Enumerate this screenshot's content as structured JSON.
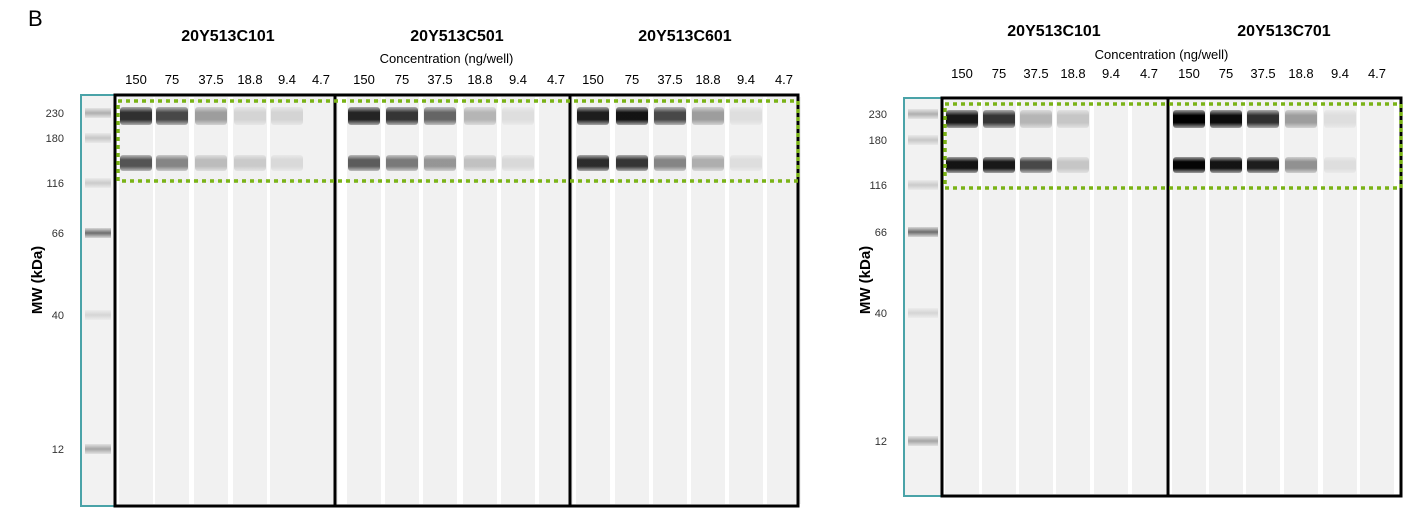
{
  "panel_label": "B",
  "concentration_label": "Concentration (ng/well)",
  "mw_axis_label": "MW (kDa)",
  "ladder_markers": [
    "230",
    "180",
    "116",
    "66",
    "40",
    "12"
  ],
  "lane_concentrations": [
    "150",
    "75",
    "37.5",
    "18.8",
    "9.4",
    "4.7"
  ],
  "colors": {
    "ladder_border": "#4aa3a8",
    "box_border": "#000000",
    "highlight": "#7ab317"
  },
  "gels": [
    {
      "groups": [
        {
          "sample": "20Y513C101",
          "heavy": [
            0.8,
            0.7,
            0.35,
            0.12,
            0.12,
            0.0
          ],
          "light": [
            0.65,
            0.45,
            0.22,
            0.16,
            0.1,
            0.0
          ]
        },
        {
          "sample": "20Y513C501",
          "heavy": [
            0.85,
            0.78,
            0.58,
            0.25,
            0.08,
            0.0
          ],
          "light": [
            0.62,
            0.5,
            0.38,
            0.2,
            0.1,
            0.0
          ]
        },
        {
          "sample": "20Y513C601",
          "heavy": [
            0.88,
            0.92,
            0.7,
            0.35,
            0.08,
            0.0
          ],
          "light": [
            0.82,
            0.78,
            0.45,
            0.28,
            0.08,
            0.0
          ]
        }
      ]
    },
    {
      "groups": [
        {
          "sample": "20Y513C101",
          "heavy": [
            0.9,
            0.78,
            0.25,
            0.18,
            0.0,
            0.0
          ],
          "light": [
            0.92,
            0.9,
            0.7,
            0.18,
            0.0,
            0.0
          ]
        },
        {
          "sample": "20Y513C701",
          "heavy": [
            1.0,
            0.95,
            0.8,
            0.35,
            0.08,
            0.0
          ],
          "light": [
            0.98,
            0.92,
            0.88,
            0.4,
            0.08,
            0.0
          ]
        }
      ]
    }
  ]
}
